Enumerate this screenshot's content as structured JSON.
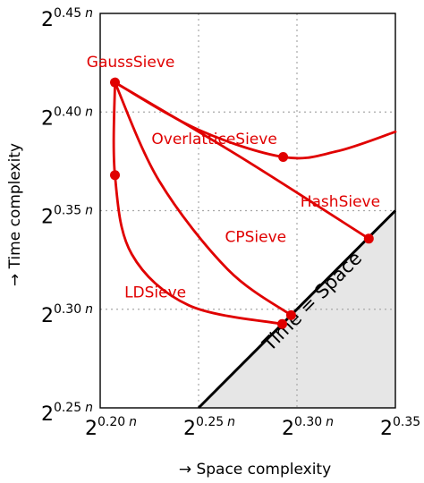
{
  "chart_data": {
    "type": "line",
    "xlabel": "→ Space complexity",
    "ylabel": "→ Time complexity",
    "xlim": [
      0.2,
      0.35
    ],
    "ylim": [
      0.25,
      0.45
    ],
    "grid": true,
    "x_ticks": [
      {
        "value": 0.2,
        "base": "2",
        "exp": "0.20",
        "var": "n"
      },
      {
        "value": 0.25,
        "base": "2",
        "exp": "0.25",
        "var": "n"
      },
      {
        "value": 0.3,
        "base": "2",
        "exp": "0.30",
        "var": "n"
      },
      {
        "value": 0.35,
        "base": "2",
        "exp": "0.35",
        "var": "n"
      }
    ],
    "y_ticks": [
      {
        "value": 0.25,
        "base": "2",
        "exp": "0.25",
        "var": "n"
      },
      {
        "value": 0.3,
        "base": "2",
        "exp": "0.30",
        "var": "n"
      },
      {
        "value": 0.35,
        "base": "2",
        "exp": "0.35",
        "var": "n"
      },
      {
        "value": 0.4,
        "base": "2",
        "exp": "0.40",
        "var": "n"
      },
      {
        "value": 0.45,
        "base": "2",
        "exp": "0.45",
        "var": "n"
      }
    ],
    "series_color": "#e00000",
    "region_color": "#e6e6e6",
    "series": [
      {
        "name": "OverlatticeSieve",
        "points": [
          [
            0.2075,
            0.415
          ],
          [
            0.25,
            0.391
          ],
          [
            0.293,
            0.3772
          ],
          [
            0.32,
            0.38
          ],
          [
            0.35,
            0.39
          ]
        ]
      },
      {
        "name": "HashSieve",
        "points": [
          [
            0.2075,
            0.415
          ],
          [
            0.27,
            0.378
          ],
          [
            0.3365,
            0.3358
          ]
        ]
      },
      {
        "name": "CPSieve",
        "points": [
          [
            0.2075,
            0.415
          ],
          [
            0.23,
            0.365
          ],
          [
            0.265,
            0.32
          ],
          [
            0.297,
            0.297
          ]
        ]
      },
      {
        "name": "LDSieve",
        "points": [
          [
            0.2075,
            0.415
          ],
          [
            0.2075,
            0.368
          ],
          [
            0.216,
            0.328
          ],
          [
            0.245,
            0.302
          ],
          [
            0.2925,
            0.2925
          ]
        ]
      }
    ],
    "markers": [
      [
        0.2075,
        0.415
      ],
      [
        0.2075,
        0.368
      ],
      [
        0.293,
        0.3772
      ],
      [
        0.3365,
        0.3358
      ],
      [
        0.297,
        0.297
      ],
      [
        0.2925,
        0.2925
      ]
    ],
    "labels": [
      {
        "text": "GaussSieve",
        "x": 0.2155,
        "y": 0.4229
      },
      {
        "text": "OverlatticeSieve",
        "x": 0.258,
        "y": 0.3837
      },
      {
        "text": "HashSieve",
        "x": 0.322,
        "y": 0.352
      },
      {
        "text": "CPSieve",
        "x": 0.279,
        "y": 0.3342
      },
      {
        "text": "LDSieve",
        "x": 0.228,
        "y": 0.306
      }
    ],
    "diagonal_label": "Time = Space"
  }
}
